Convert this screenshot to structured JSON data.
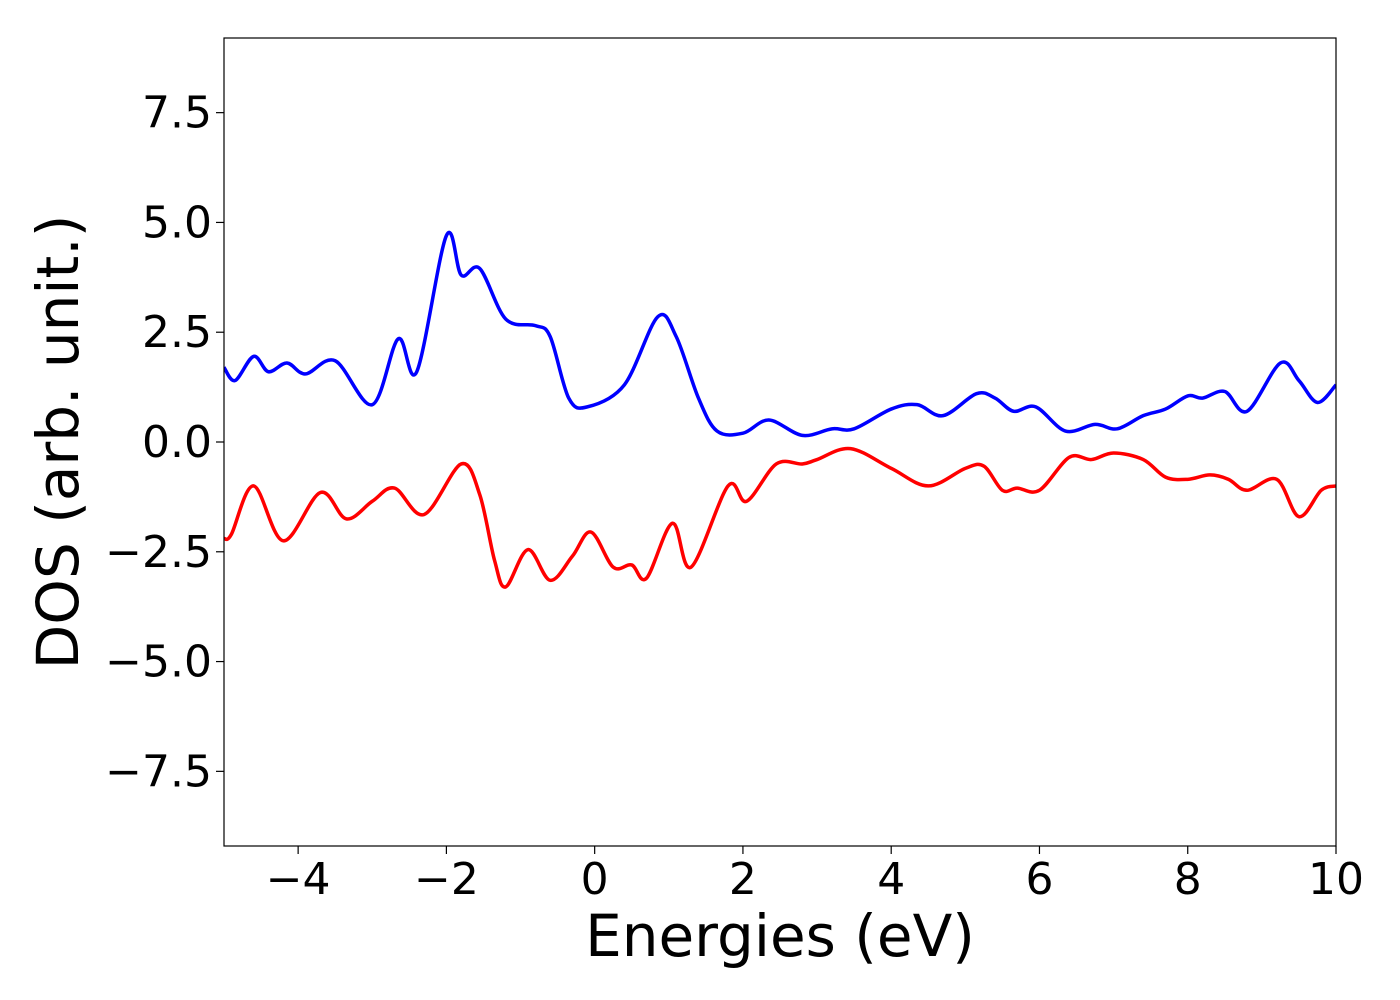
{
  "chart_data": {
    "type": "line",
    "title": "",
    "xlabel": "Energies (eV)",
    "ylabel": "DOS (arb. unit.)",
    "xlim": [
      -5,
      10
    ],
    "ylim": [
      -9.2,
      9.2
    ],
    "grid": false,
    "x_ticks": [
      {
        "value": -4,
        "label": "−4"
      },
      {
        "value": -2,
        "label": "−2"
      },
      {
        "value": 0,
        "label": "0"
      },
      {
        "value": 2,
        "label": "2"
      },
      {
        "value": 4,
        "label": "4"
      },
      {
        "value": 6,
        "label": "6"
      },
      {
        "value": 8,
        "label": "8"
      },
      {
        "value": 10,
        "label": "10"
      }
    ],
    "y_ticks": [
      {
        "value": -7.5,
        "label": "−7.5"
      },
      {
        "value": -5.0,
        "label": "−5.0"
      },
      {
        "value": -2.5,
        "label": "−2.5"
      },
      {
        "value": 0.0,
        "label": "0.0"
      },
      {
        "value": 2.5,
        "label": "2.5"
      },
      {
        "value": 5.0,
        "label": "5.0"
      },
      {
        "value": 7.5,
        "label": "7.5"
      }
    ],
    "series": [
      {
        "color": "#0000ff",
        "x": [
          -5.0,
          -4.85,
          -4.6,
          -4.4,
          -4.15,
          -3.9,
          -3.5,
          -3.0,
          -2.65,
          -2.4,
          -2.0,
          -1.8,
          -1.55,
          -1.2,
          -0.8,
          -0.6,
          -0.35,
          -0.1,
          0.4,
          0.85,
          1.1,
          1.4,
          1.65,
          2.0,
          2.35,
          2.8,
          3.2,
          3.5,
          4.0,
          4.35,
          4.7,
          5.15,
          5.4,
          5.65,
          5.95,
          6.35,
          6.75,
          7.05,
          7.4,
          7.7,
          8.0,
          8.2,
          8.5,
          8.8,
          9.25,
          9.5,
          9.75,
          10.0
        ],
        "values": [
          1.7,
          1.4,
          1.95,
          1.6,
          1.8,
          1.55,
          1.85,
          0.85,
          2.35,
          1.6,
          4.7,
          3.8,
          3.95,
          2.8,
          2.65,
          2.4,
          1.0,
          0.8,
          1.3,
          2.85,
          2.4,
          1.0,
          0.25,
          0.2,
          0.5,
          0.15,
          0.3,
          0.3,
          0.75,
          0.85,
          0.6,
          1.1,
          1.0,
          0.7,
          0.8,
          0.25,
          0.4,
          0.3,
          0.6,
          0.75,
          1.05,
          1.0,
          1.15,
          0.7,
          1.8,
          1.4,
          0.9,
          1.3
        ]
      },
      {
        "color": "#ff0000",
        "x": [
          -5.0,
          -4.9,
          -4.6,
          -4.2,
          -3.7,
          -3.35,
          -3.0,
          -2.7,
          -2.3,
          -1.8,
          -1.55,
          -1.35,
          -1.2,
          -0.9,
          -0.6,
          -0.3,
          -0.05,
          0.25,
          0.5,
          0.7,
          1.05,
          1.3,
          1.8,
          2.05,
          2.45,
          2.8,
          3.0,
          3.45,
          4.0,
          4.5,
          5.0,
          5.25,
          5.5,
          5.7,
          6.0,
          6.4,
          6.7,
          7.0,
          7.4,
          7.7,
          8.0,
          8.3,
          8.55,
          8.8,
          9.2,
          9.5,
          9.8,
          10.0
        ],
        "values": [
          -2.2,
          -2.1,
          -1.0,
          -2.25,
          -1.15,
          -1.75,
          -1.35,
          -1.05,
          -1.65,
          -0.5,
          -1.2,
          -2.7,
          -3.3,
          -2.45,
          -3.15,
          -2.6,
          -2.05,
          -2.85,
          -2.8,
          -3.1,
          -1.85,
          -2.85,
          -1.0,
          -1.35,
          -0.5,
          -0.5,
          -0.4,
          -0.15,
          -0.6,
          -1.0,
          -0.6,
          -0.55,
          -1.1,
          -1.05,
          -1.1,
          -0.35,
          -0.4,
          -0.25,
          -0.4,
          -0.8,
          -0.85,
          -0.75,
          -0.85,
          -1.1,
          -0.85,
          -1.7,
          -1.1,
          -1.0
        ]
      }
    ]
  }
}
